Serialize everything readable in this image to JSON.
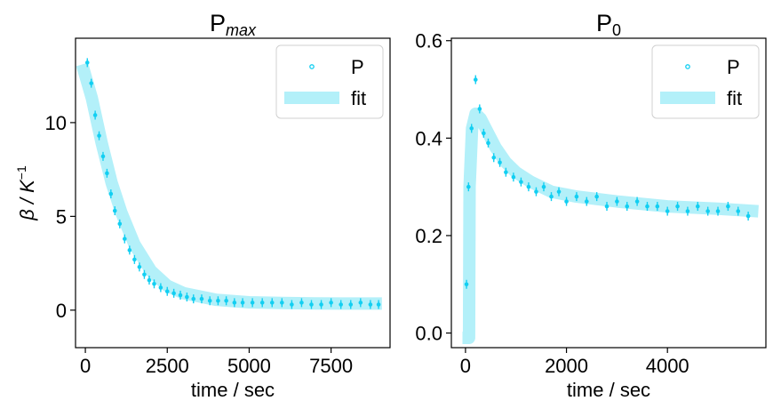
{
  "chart_data": [
    {
      "type": "scatter",
      "title": "P",
      "title_sub": "max",
      "xlabel": "time / sec",
      "ylabel": "β / K",
      "ylabel_sup": "−1",
      "xlim": [
        -300,
        9300
      ],
      "ylim": [
        -2.0,
        14.5
      ],
      "xticks": [
        0,
        2500,
        5000,
        7500
      ],
      "xtick_labels": [
        "0",
        "2500",
        "5000",
        "7500"
      ],
      "yticks": [
        0,
        5,
        10
      ],
      "ytick_labels": [
        "0",
        "5",
        "10"
      ],
      "legend": {
        "position": "top-right",
        "entries": [
          "P",
          "fit"
        ]
      },
      "grid": false,
      "colors": {
        "points": "#12cff2",
        "fit": "#b3f0f9"
      },
      "series": [
        {
          "name": "P",
          "kind": "errorbar-points",
          "x": [
            60,
            180,
            300,
            420,
            540,
            660,
            780,
            900,
            1050,
            1200,
            1350,
            1500,
            1650,
            1800,
            1950,
            2100,
            2300,
            2500,
            2700,
            2900,
            3100,
            3300,
            3550,
            3800,
            4050,
            4300,
            4550,
            4800,
            5100,
            5400,
            5700,
            6000,
            6300,
            6600,
            6900,
            7200,
            7500,
            7800,
            8100,
            8400,
            8700,
            8950
          ],
          "y": [
            13.2,
            12.1,
            10.4,
            9.3,
            8.2,
            7.3,
            6.2,
            5.3,
            4.6,
            3.8,
            3.2,
            2.7,
            2.3,
            1.9,
            1.6,
            1.4,
            1.2,
            1.0,
            0.9,
            0.8,
            0.7,
            0.6,
            0.6,
            0.5,
            0.5,
            0.5,
            0.4,
            0.4,
            0.4,
            0.4,
            0.4,
            0.4,
            0.3,
            0.4,
            0.3,
            0.3,
            0.4,
            0.3,
            0.3,
            0.4,
            0.3,
            0.3
          ]
        },
        {
          "name": "fit",
          "kind": "band",
          "x": [
            -100,
            200,
            500,
            800,
            1100,
            1500,
            2000,
            2500,
            3000,
            4000,
            5000,
            6000,
            7000,
            8000,
            9050
          ],
          "y": [
            13.1,
            11.3,
            8.9,
            6.8,
            5.2,
            3.5,
            2.1,
            1.3,
            0.9,
            0.55,
            0.42,
            0.38,
            0.36,
            0.35,
            0.35
          ]
        }
      ]
    },
    {
      "type": "scatter",
      "title": "P",
      "title_sub": "0",
      "xlabel": "time / sec",
      "ylabel": "",
      "xlim": [
        -280,
        5950
      ],
      "ylim": [
        -0.03,
        0.605
      ],
      "xticks": [
        0,
        2000,
        4000
      ],
      "xtick_labels": [
        "0",
        "2000",
        "4000"
      ],
      "yticks": [
        0.0,
        0.2,
        0.4,
        0.6
      ],
      "ytick_labels": [
        "0.0",
        "0.2",
        "0.4",
        "0.6"
      ],
      "legend": {
        "position": "top-right",
        "entries": [
          "P",
          "fit"
        ]
      },
      "grid": false,
      "colors": {
        "points": "#12cff2",
        "fit": "#b3f0f9"
      },
      "series": [
        {
          "name": "P",
          "kind": "errorbar-points",
          "x": [
            20,
            60,
            120,
            200,
            280,
            360,
            450,
            560,
            680,
            800,
            950,
            1100,
            1250,
            1400,
            1550,
            1700,
            1850,
            2000,
            2200,
            2400,
            2600,
            2800,
            3000,
            3200,
            3400,
            3600,
            3800,
            4000,
            4200,
            4400,
            4600,
            4800,
            5000,
            5200,
            5400,
            5600
          ],
          "y": [
            0.1,
            0.3,
            0.42,
            0.52,
            0.46,
            0.41,
            0.39,
            0.36,
            0.35,
            0.33,
            0.32,
            0.31,
            0.3,
            0.29,
            0.3,
            0.28,
            0.29,
            0.27,
            0.28,
            0.27,
            0.28,
            0.26,
            0.27,
            0.26,
            0.27,
            0.26,
            0.26,
            0.25,
            0.26,
            0.25,
            0.26,
            0.25,
            0.25,
            0.26,
            0.25,
            0.24
          ]
        },
        {
          "name": "fit",
          "kind": "band",
          "x": [
            -60,
            70,
            80,
            130,
            200,
            300,
            450,
            600,
            800,
            1000,
            1300,
            1700,
            2200,
            3000,
            4000,
            5000,
            5800
          ],
          "y": [
            -0.01,
            -0.01,
            0.3,
            0.42,
            0.45,
            0.44,
            0.41,
            0.38,
            0.35,
            0.33,
            0.31,
            0.29,
            0.28,
            0.27,
            0.26,
            0.255,
            0.25
          ]
        }
      ]
    }
  ]
}
